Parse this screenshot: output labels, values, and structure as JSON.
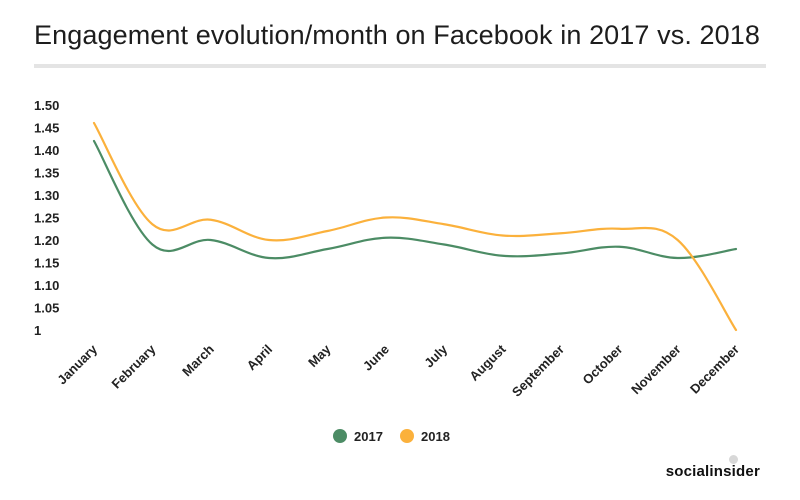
{
  "chart_data": {
    "type": "line",
    "title": "Engagement evolution/month on Facebook in 2017 vs. 2018",
    "categories": [
      "January",
      "February",
      "March",
      "April",
      "May",
      "June",
      "July",
      "August",
      "September",
      "October",
      "November",
      "December"
    ],
    "series": [
      {
        "name": "2017",
        "color": "#4c8c65",
        "values": [
          1.42,
          1.19,
          1.2,
          1.16,
          1.18,
          1.205,
          1.19,
          1.165,
          1.17,
          1.185,
          1.16,
          1.18
        ]
      },
      {
        "name": "2018",
        "color": "#fbb13c",
        "values": [
          1.46,
          1.235,
          1.245,
          1.2,
          1.22,
          1.25,
          1.235,
          1.21,
          1.215,
          1.225,
          1.2,
          1.0
        ]
      }
    ],
    "yticks": [
      "1.50",
      "1.45",
      "1.40",
      "1.35",
      "1.30",
      "1.25",
      "1.20",
      "1.15",
      "1.10",
      "1.05",
      "1"
    ],
    "ylim": [
      1.0,
      1.5
    ],
    "xlabel": "",
    "ylabel": "",
    "grid": false,
    "legend_position": "bottom"
  },
  "brand": "socialinsider"
}
